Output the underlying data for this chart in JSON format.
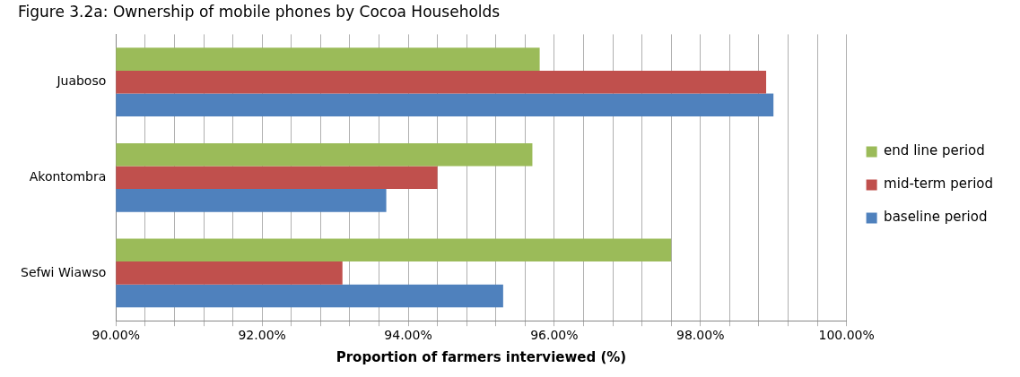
{
  "chart_data": {
    "type": "bar",
    "orientation": "horizontal",
    "title": "Figure 3.2a: Ownership of mobile phones by Cocoa Households",
    "xlabel": "Proportion of farmers interviewed (%)",
    "categories": [
      "Juaboso",
      "Akontombra",
      "Sefwi Wiawso"
    ],
    "series": [
      {
        "name": "end line period",
        "color": "#9bbb59",
        "values": [
          95.8,
          95.7,
          97.6
        ]
      },
      {
        "name": "mid-term period",
        "color": "#c0504d",
        "values": [
          98.9,
          94.4,
          93.1
        ]
      },
      {
        "name": "baseline period",
        "color": "#4f81bd",
        "values": [
          99.0,
          93.7,
          95.3
        ]
      }
    ],
    "xlim": [
      90,
      100
    ],
    "xticks": [
      {
        "value": 90,
        "label": "90.00%"
      },
      {
        "value": 90.4,
        "label": null
      },
      {
        "value": 90.8,
        "label": null
      },
      {
        "value": 91.2,
        "label": null
      },
      {
        "value": 91.6,
        "label": null
      },
      {
        "value": 92,
        "label": "92.00%"
      },
      {
        "value": 92.4,
        "label": null
      },
      {
        "value": 92.8,
        "label": null
      },
      {
        "value": 93.2,
        "label": null
      },
      {
        "value": 93.6,
        "label": null
      },
      {
        "value": 94,
        "label": "94.00%"
      },
      {
        "value": 94.4,
        "label": null
      },
      {
        "value": 94.8,
        "label": null
      },
      {
        "value": 95.2,
        "label": null
      },
      {
        "value": 95.6,
        "label": null
      },
      {
        "value": 96,
        "label": "96.00%"
      },
      {
        "value": 96.4,
        "label": null
      },
      {
        "value": 96.8,
        "label": null
      },
      {
        "value": 97.2,
        "label": null
      },
      {
        "value": 97.6,
        "label": null
      },
      {
        "value": 98,
        "label": "98.00%"
      },
      {
        "value": 98.4,
        "label": null
      },
      {
        "value": 98.8,
        "label": null
      },
      {
        "value": 99.2,
        "label": null
      },
      {
        "value": 99.6,
        "label": null
      },
      {
        "value": 100,
        "label": "100.00%"
      }
    ],
    "grid": "x",
    "legend": "right"
  }
}
